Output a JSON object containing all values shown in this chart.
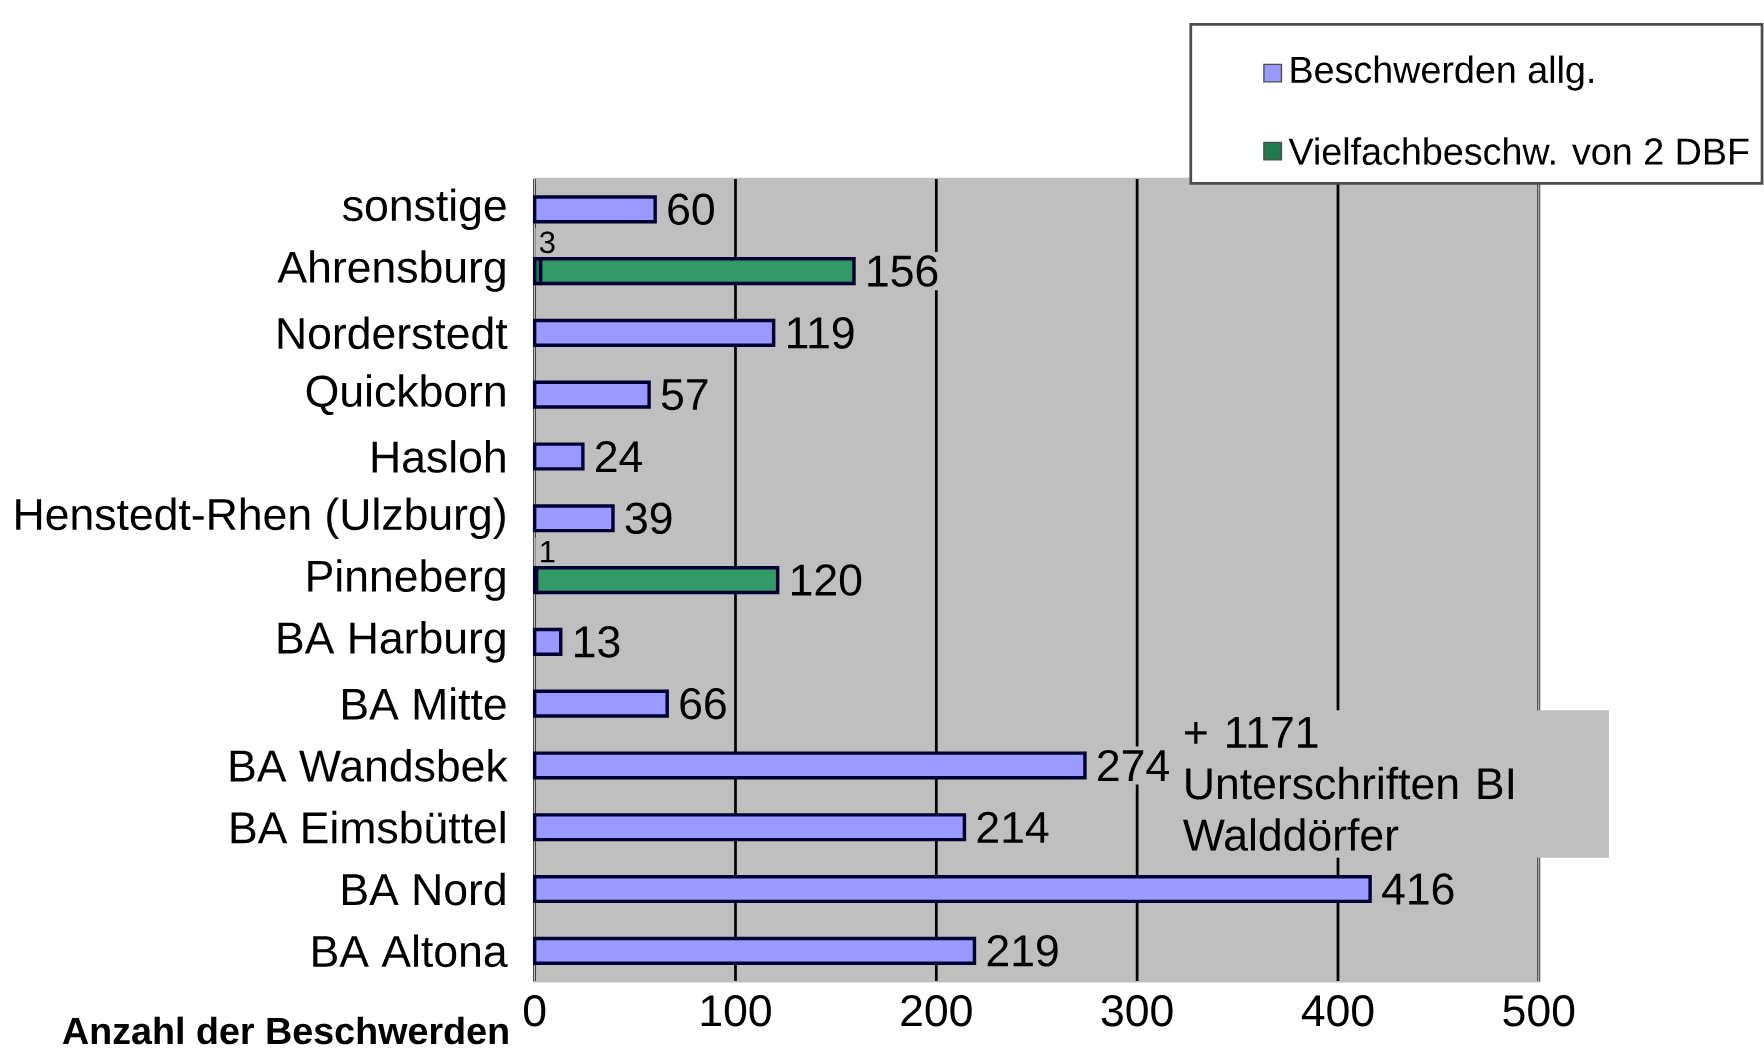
{
  "chart_data": {
    "type": "bar",
    "orientation": "horizontal",
    "stacked": true,
    "xlabel": "Anzahl der Beschwerden",
    "categories": [
      "sonstige",
      "Ahrensburg",
      "Norderstedt",
      "Quickborn",
      "Hasloh",
      "Henstedt-Rhen (Ulzburg)",
      "Pinneberg",
      "BA Harburg",
      "BA Mitte",
      "BA Wandsbek",
      "BA Eimsbüttel",
      "BA Nord",
      "BA Altona"
    ],
    "series": [
      {
        "name": "Vielfachbeschw. von 2 DBF",
        "color": "#1f7a4d",
        "values": [
          null,
          3,
          null,
          null,
          null,
          null,
          1,
          null,
          null,
          null,
          null,
          null,
          null
        ]
      },
      {
        "name": "Beschwerden allg.",
        "color": "#9999ff",
        "colors": [
          "#9999ff",
          "#339966",
          "#9999ff",
          "#9999ff",
          "#9999ff",
          "#9999ff",
          "#339966",
          "#9999ff",
          "#9999ff",
          "#9999ff",
          "#9999ff",
          "#9999ff",
          "#9999ff"
        ],
        "values": [
          60,
          156,
          119,
          57,
          24,
          39,
          120,
          13,
          66,
          274,
          214,
          416,
          219
        ]
      }
    ],
    "xlim": [
      0,
      500
    ],
    "xticks": [
      0,
      100,
      200,
      300,
      400,
      500
    ],
    "grid": "x",
    "legend": "top right",
    "data_labels": true,
    "annotations": [
      {
        "text": "+ 1171 Unterschriften BI Walddörfer",
        "x": 274,
        "y": "BA Wandsbek"
      }
    ]
  }
}
